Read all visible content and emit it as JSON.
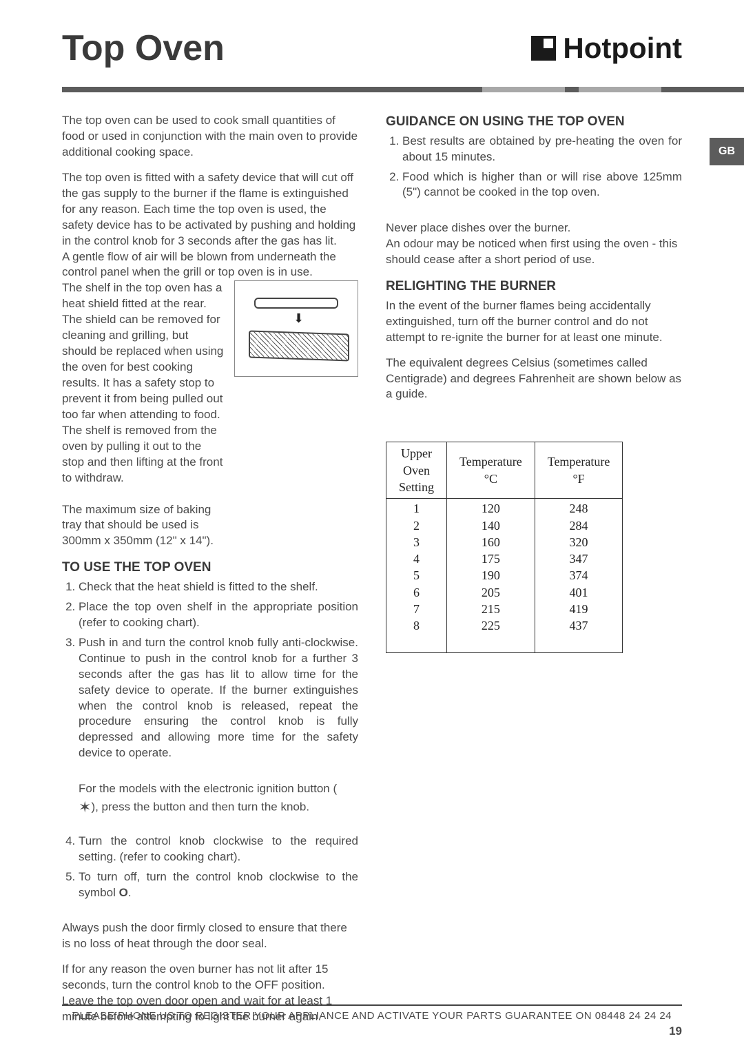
{
  "header": {
    "title": "Top Oven",
    "brand": "Hotpoint",
    "side_tab": "GB"
  },
  "left_col": {
    "intro_p1": "The top oven can be used to cook small quantities of food or used in conjunction with the main oven to provide additional cooking space.",
    "intro_p2": "The top oven is fitted with a safety device that will cut off the gas supply to the burner if the flame is extinguished for any reason. Each time the top oven is used, the safety device has to be activated by pushing and holding in the control knob for 3 seconds after the gas has lit.",
    "intro_p3": "A gentle flow of air will be blown from underneath the control panel when the grill or top oven is in use.",
    "intro_p4": "The shelf in the top oven has a heat shield fitted at the rear. The shield can be removed for cleaning and grilling, but should be replaced when using the oven for best cooking results. It has a safety stop to prevent it from being pulled out too far when attending to food. The shelf is removed from the oven by pulling it out to the stop and then lifting at the front to withdraw.",
    "tray_note": "The maximum size of baking tray that should be used is 300mm x 350mm (12\" x 14\").",
    "use_heading": "TO USE THE TOP OVEN",
    "use_steps": [
      "Check that the heat shield is fitted to the shelf.",
      "Place the top oven shelf in the appropriate position (refer to cooking chart).",
      "Push in and turn the control knob fully anti-clockwise. Continue to push in the control knob for a further 3 seconds after the gas has lit to allow time for the safety device to operate. If the burner extinguishes when the control knob is released, repeat the procedure ensuring the control knob is fully depressed and allowing more time for the safety device to operate."
    ],
    "ignition_note_prefix": "For the models with the electronic ignition button (",
    "ignition_note_suffix": "), press the button and then turn the knob.",
    "spark_glyph": "✶",
    "use_steps_cont": [
      "Turn the control knob clockwise to the required setting. (refer to cooking chart).",
      "To turn off, turn the control knob clockwise to the symbol O."
    ],
    "door_note": "Always push the door firmly closed to ensure that there is no loss of heat through the door seal.",
    "burner_fail_note": "If for any reason the oven burner has not lit after 15 seconds, turn the control knob to the OFF position. Leave the top oven door open and wait for at least 1 minute before attempting to light the burner again."
  },
  "right_col": {
    "guidance_heading": "GUIDANCE ON USING THE TOP OVEN",
    "guidance_steps": [
      "Best results are obtained by pre-heating the oven for about 15 minutes.",
      "Food which is higher than or will rise above 125mm (5\") cannot be cooked in the top oven."
    ],
    "never_note": "Never place dishes over the burner.",
    "odour_note": "An odour may be noticed when first using the oven - this should cease after a short period of use.",
    "relight_heading": "RELIGHTING THE BURNER",
    "relight_body": "In the event of the burner flames being accidentally extinguished, turn off the burner control and do not attempt to re-ignite the burner for at least one minute.",
    "equiv_note": "The equivalent degrees Celsius (sometimes called Centigrade) and degrees Fahrenheit are shown below as a guide.",
    "temp_table": {
      "columns": [
        "Upper Oven Setting",
        "Temperature °C",
        "Temperature °F"
      ],
      "rows": [
        [
          "1",
          "120",
          "248"
        ],
        [
          "2",
          "140",
          "284"
        ],
        [
          "3",
          "160",
          "320"
        ],
        [
          "4",
          "175",
          "347"
        ],
        [
          "5",
          "190",
          "374"
        ],
        [
          "6",
          "205",
          "401"
        ],
        [
          "7",
          "215",
          "419"
        ],
        [
          "8",
          "225",
          "437"
        ]
      ]
    }
  },
  "footer": {
    "text": "PLEASE PHONE US TO REGISTER YOUR APPLIANCE  AND ACTIVATE YOUR PARTS GUARANTEE ON 08448 24 24 24",
    "page_number": "19"
  },
  "colors": {
    "text": "#4a4a4a",
    "heading": "#3a3a3a",
    "rule_dark": "#5c5c5c",
    "rule_light": "#a8a8a8"
  }
}
